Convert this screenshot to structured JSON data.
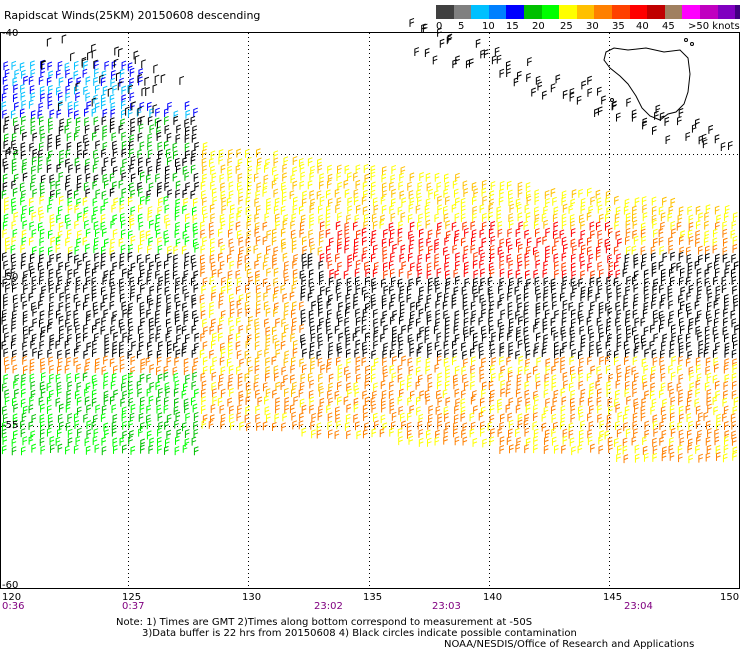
{
  "title": "Rapidscat Winds(25KM) 20150608 descending",
  "legend": {
    "colors": [
      "#404040",
      "#808080",
      "#00c0ff",
      "#0080ff",
      "#0000ff",
      "#00c000",
      "#00ff00",
      "#ffff00",
      "#ffc000",
      "#ff8000",
      "#ff4000",
      "#ff0000",
      "#c00000",
      "#a08060",
      "#ff00ff",
      "#c000c0",
      "#8000c0",
      "#400080"
    ],
    "ticks": [
      "0",
      "5",
      "10",
      "15",
      "20",
      "25",
      "30",
      "35",
      "40",
      "45",
      ">50 knots"
    ]
  },
  "lon_labels": [
    "120",
    "125",
    "130",
    "135",
    "140",
    "145",
    "150"
  ],
  "lat_labels": [
    "-40",
    "-45",
    "-50",
    "-55",
    "-60"
  ],
  "time_labels": [
    "0:36",
    "0:37",
    "23:02",
    "23:03",
    "23:04"
  ],
  "notes": [
    "Note: 1) Times are GMT 2)Times along bottom correspond to measurement at -50S",
    "3)Data buffer is 22 hrs from 20150608 4) Black circles indicate possible contamination",
    "NOAA/NESDIS/Office of Research and Applications"
  ]
}
